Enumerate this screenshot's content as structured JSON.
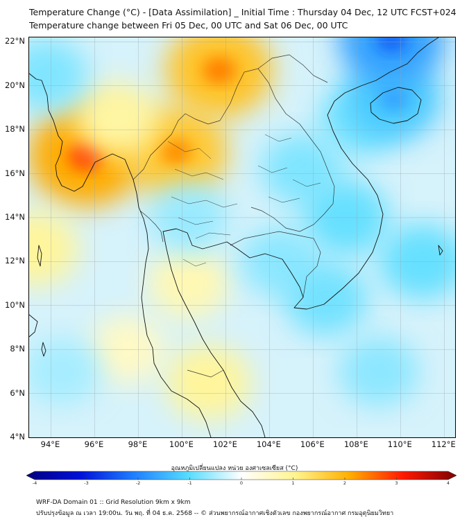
{
  "title": {
    "line1": "Temperature Change (°C) - [Data Assimilation] _ Initial Time : Thursday 04 Dec, 12 UTC FCST+024",
    "line2": "Temperature change between Fri 05 Dec, 00 UTC and Sat 06 Dec, 00 UTC"
  },
  "map": {
    "lon_range": [
      93,
      112.5
    ],
    "lat_range": [
      4,
      22.2
    ],
    "lat_ticks": [
      {
        "value": 22,
        "label": "22°N"
      },
      {
        "value": 20,
        "label": "20°N"
      },
      {
        "value": 18,
        "label": "18°N"
      },
      {
        "value": 16,
        "label": "16°N"
      },
      {
        "value": 14,
        "label": "14°N"
      },
      {
        "value": 12,
        "label": "12°N"
      },
      {
        "value": 10,
        "label": "10°N"
      },
      {
        "value": 8,
        "label": "8°N"
      },
      {
        "value": 6,
        "label": "6°N"
      },
      {
        "value": 4,
        "label": "4°N"
      }
    ],
    "lon_ticks": [
      {
        "value": 94,
        "label": "94°E"
      },
      {
        "value": 96,
        "label": "96°E"
      },
      {
        "value": 98,
        "label": "98°E"
      },
      {
        "value": 100,
        "label": "100°E"
      },
      {
        "value": 102,
        "label": "102°E"
      },
      {
        "value": 104,
        "label": "104°E"
      },
      {
        "value": 106,
        "label": "106°E"
      },
      {
        "value": 108,
        "label": "108°E"
      },
      {
        "value": 110,
        "label": "110°E"
      },
      {
        "value": 112,
        "label": "112°E"
      }
    ],
    "field_blobs": [
      {
        "name": "hot-spot-myanmar-west",
        "lon": 95.6,
        "lat": 16.8,
        "value": 2.7
      },
      {
        "name": "hot-spot-laos-north",
        "lon": 101.7,
        "lat": 20.7,
        "value": 2.3
      },
      {
        "name": "hot-spot-thailand-north",
        "lon": 99.7,
        "lat": 17.0,
        "value": 2.2
      },
      {
        "name": "warm-myanmar-central",
        "lon": 97.0,
        "lat": 18.5,
        "value": 1.1
      },
      {
        "name": "warm-gulf-thailand",
        "lon": 100.3,
        "lat": 11.0,
        "value": 0.9
      },
      {
        "name": "warm-malay-peninsula",
        "lon": 101.2,
        "lat": 6.5,
        "value": 1.2
      },
      {
        "name": "warm-andaman-west",
        "lon": 93.3,
        "lat": 12.6,
        "value": 1.2
      },
      {
        "name": "warm-andaman-south",
        "lon": 97.5,
        "lat": 8.0,
        "value": 0.7
      },
      {
        "name": "cool-north-west",
        "lon": 93.8,
        "lat": 20.5,
        "value": -1.0
      },
      {
        "name": "cool-tonkin",
        "lon": 108.2,
        "lat": 18.5,
        "value": -1.1
      },
      {
        "name": "cool-hainan",
        "lon": 109.7,
        "lat": 19.4,
        "value": -1.6
      },
      {
        "name": "cool-laos-central",
        "lon": 105.5,
        "lat": 16.2,
        "value": -1.0
      },
      {
        "name": "cool-vietnam-central",
        "lon": 107.5,
        "lat": 14.0,
        "value": -1.2
      },
      {
        "name": "cool-cambodia",
        "lon": 104.5,
        "lat": 12.0,
        "value": -0.9
      },
      {
        "name": "cool-mekong-delta",
        "lon": 106.6,
        "lat": 10.3,
        "value": -1.1
      },
      {
        "name": "cool-scs-east",
        "lon": 111.0,
        "lat": 12.0,
        "value": -1.2
      },
      {
        "name": "cool-scs-south",
        "lon": 109.0,
        "lat": 7.0,
        "value": -0.9
      },
      {
        "name": "cool-bangkok",
        "lon": 100.3,
        "lat": 14.0,
        "value": -0.8
      },
      {
        "name": "cool-north-edge",
        "lon": 109.6,
        "lat": 22.1,
        "value": -2.2
      },
      {
        "name": "cool-andaman-south",
        "lon": 94.5,
        "lat": 7.0,
        "value": -0.7
      }
    ]
  },
  "colorbar": {
    "title": "อุณหภูมิเปลี่ยนแปลง หน่วย องศาเซลเซียส (°C)",
    "min": -4,
    "max": 4,
    "ticks": [
      "-4",
      "-3",
      "-2",
      "-1",
      "0",
      "1",
      "2",
      "3",
      "4"
    ],
    "colors": {
      "m4": "#000080",
      "m3": "#0010d8",
      "m2": "#1f7fff",
      "m1": "#55dcff",
      "zero": "#ffffff",
      "p1": "#fff490",
      "p2": "#ffb000",
      "p3": "#ff1a00",
      "p4": "#7f0000"
    }
  },
  "footer": {
    "line1": "WRF-DA Domain 01 :: Grid Resolution 9km x 9km",
    "line2": "ปรับปรุงข้อมูล ณ เวลา 19:00น. วัน พฤ. ที่ 04 ธ.ค. 2568 -- © ส่วนพยากรณ์อากาศเชิงตัวเลข กองพยากรณ์อากาศ กรมอุตุนิยมวิทยา"
  }
}
